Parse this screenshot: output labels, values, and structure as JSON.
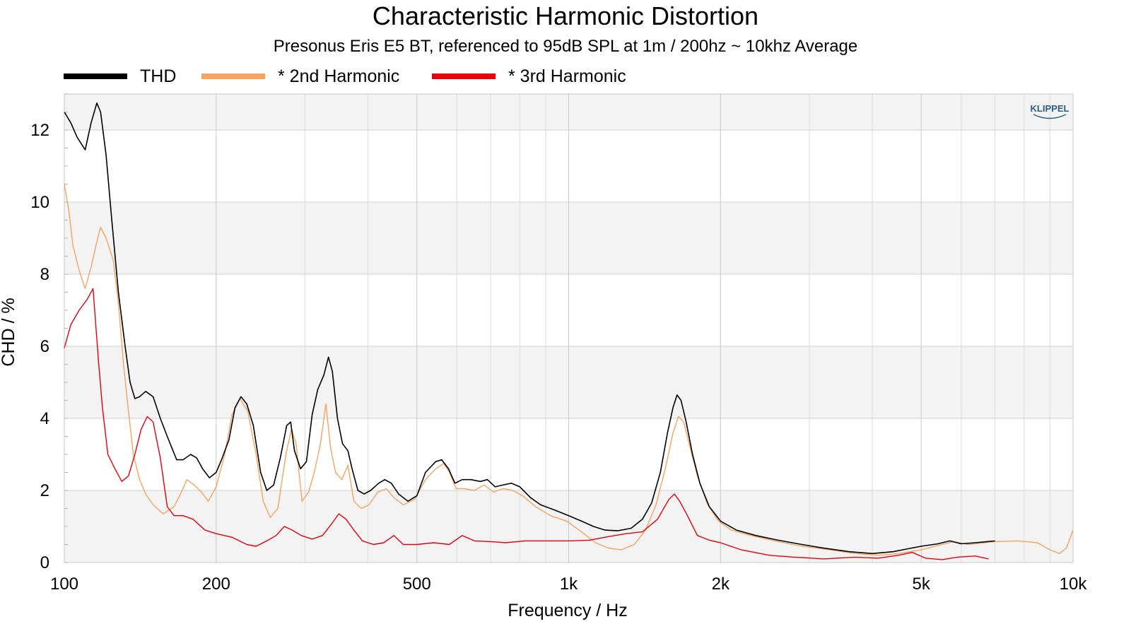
{
  "chart_data": {
    "type": "line",
    "title": "Characteristic Harmonic Distortion",
    "subtitle": "Presonus Eris E5 BT, referenced to 95dB SPL at 1m / 200hz ~ 10khz Average",
    "xlabel": "Frequency / Hz",
    "ylabel": "CHD / %",
    "xscale": "log",
    "xlim": [
      100,
      10000
    ],
    "ylim": [
      0,
      13
    ],
    "x_ticks": [
      100,
      200,
      500,
      1000,
      2000,
      5000,
      10000
    ],
    "x_tick_labels": [
      "100",
      "200",
      "500",
      "1k",
      "2k",
      "5k",
      "10k"
    ],
    "y_ticks": [
      0,
      2,
      4,
      6,
      8,
      10,
      12
    ],
    "y_tick_labels": [
      "0",
      "2",
      "4",
      "6",
      "8",
      "10",
      "12"
    ],
    "grid": true,
    "legend_position": "top-left",
    "watermark": "KLIPPEL",
    "series": [
      {
        "name": "THD",
        "color": "#000000",
        "points": [
          [
            100,
            12.5
          ],
          [
            103,
            12.2
          ],
          [
            106,
            11.8
          ],
          [
            110,
            11.45
          ],
          [
            113,
            12.2
          ],
          [
            116,
            12.75
          ],
          [
            118,
            12.5
          ],
          [
            121,
            11.3
          ],
          [
            124,
            9.6
          ],
          [
            128,
            7.5
          ],
          [
            132,
            6.0
          ],
          [
            135,
            5.0
          ],
          [
            138,
            4.55
          ],
          [
            141,
            4.6
          ],
          [
            145,
            4.75
          ],
          [
            150,
            4.6
          ],
          [
            155,
            4.0
          ],
          [
            160,
            3.5
          ],
          [
            167,
            2.85
          ],
          [
            172,
            2.85
          ],
          [
            178,
            3.0
          ],
          [
            183,
            2.9
          ],
          [
            188,
            2.6
          ],
          [
            194,
            2.35
          ],
          [
            200,
            2.5
          ],
          [
            205,
            2.85
          ],
          [
            212,
            3.4
          ],
          [
            218,
            4.3
          ],
          [
            224,
            4.6
          ],
          [
            230,
            4.4
          ],
          [
            237,
            3.8
          ],
          [
            245,
            2.5
          ],
          [
            252,
            2.0
          ],
          [
            260,
            2.15
          ],
          [
            268,
            2.9
          ],
          [
            276,
            3.8
          ],
          [
            281,
            3.9
          ],
          [
            286,
            3.1
          ],
          [
            294,
            2.6
          ],
          [
            302,
            2.8
          ],
          [
            310,
            4.1
          ],
          [
            318,
            4.8
          ],
          [
            327,
            5.2
          ],
          [
            334,
            5.7
          ],
          [
            340,
            5.3
          ],
          [
            348,
            4.0
          ],
          [
            356,
            3.3
          ],
          [
            365,
            3.1
          ],
          [
            372,
            2.6
          ],
          [
            382,
            2.0
          ],
          [
            393,
            1.9
          ],
          [
            405,
            2.0
          ],
          [
            420,
            2.2
          ],
          [
            432,
            2.3
          ],
          [
            445,
            2.2
          ],
          [
            460,
            1.9
          ],
          [
            480,
            1.7
          ],
          [
            500,
            1.85
          ],
          [
            520,
            2.5
          ],
          [
            545,
            2.8
          ],
          [
            560,
            2.85
          ],
          [
            578,
            2.6
          ],
          [
            595,
            2.2
          ],
          [
            615,
            2.3
          ],
          [
            640,
            2.3
          ],
          [
            668,
            2.25
          ],
          [
            690,
            2.3
          ],
          [
            715,
            2.1
          ],
          [
            740,
            2.15
          ],
          [
            770,
            2.2
          ],
          [
            800,
            2.1
          ],
          [
            840,
            1.8
          ],
          [
            880,
            1.6
          ],
          [
            940,
            1.45
          ],
          [
            1000,
            1.3
          ],
          [
            1060,
            1.15
          ],
          [
            1120,
            1.0
          ],
          [
            1180,
            0.9
          ],
          [
            1250,
            0.88
          ],
          [
            1330,
            0.95
          ],
          [
            1400,
            1.2
          ],
          [
            1460,
            1.65
          ],
          [
            1520,
            2.5
          ],
          [
            1570,
            3.6
          ],
          [
            1610,
            4.3
          ],
          [
            1640,
            4.65
          ],
          [
            1670,
            4.5
          ],
          [
            1710,
            3.9
          ],
          [
            1760,
            3.0
          ],
          [
            1820,
            2.2
          ],
          [
            1900,
            1.55
          ],
          [
            2000,
            1.15
          ],
          [
            2150,
            0.9
          ],
          [
            2350,
            0.75
          ],
          [
            2600,
            0.62
          ],
          [
            2900,
            0.5
          ],
          [
            3200,
            0.4
          ],
          [
            3600,
            0.3
          ],
          [
            4000,
            0.25
          ],
          [
            4400,
            0.3
          ],
          [
            4700,
            0.38
          ],
          [
            5000,
            0.45
          ],
          [
            5400,
            0.52
          ],
          [
            5700,
            0.6
          ],
          [
            6000,
            0.52
          ],
          [
            6400,
            0.55
          ],
          [
            7000,
            0.6
          ]
        ]
      },
      {
        "name": "* 2nd Harmonic",
        "color": "#f4a460",
        "points": [
          [
            100,
            10.5
          ],
          [
            102,
            9.8
          ],
          [
            104,
            8.8
          ],
          [
            107,
            8.1
          ],
          [
            110,
            7.6
          ],
          [
            113,
            8.2
          ],
          [
            116,
            8.9
          ],
          [
            118,
            9.3
          ],
          [
            121,
            9.0
          ],
          [
            125,
            8.4
          ],
          [
            128,
            7.2
          ],
          [
            131,
            5.5
          ],
          [
            134,
            4.2
          ],
          [
            137,
            3.0
          ],
          [
            141,
            2.3
          ],
          [
            145,
            1.9
          ],
          [
            150,
            1.6
          ],
          [
            157,
            1.35
          ],
          [
            165,
            1.55
          ],
          [
            170,
            1.9
          ],
          [
            175,
            2.3
          ],
          [
            181,
            2.15
          ],
          [
            187,
            1.95
          ],
          [
            193,
            1.7
          ],
          [
            200,
            2.1
          ],
          [
            208,
            3.0
          ],
          [
            215,
            4.1
          ],
          [
            223,
            4.55
          ],
          [
            231,
            4.2
          ],
          [
            240,
            3.0
          ],
          [
            248,
            1.7
          ],
          [
            256,
            1.25
          ],
          [
            265,
            1.5
          ],
          [
            275,
            3.0
          ],
          [
            282,
            3.7
          ],
          [
            288,
            3.3
          ],
          [
            296,
            1.7
          ],
          [
            305,
            1.95
          ],
          [
            313,
            2.5
          ],
          [
            322,
            3.3
          ],
          [
            330,
            4.4
          ],
          [
            337,
            3.2
          ],
          [
            345,
            2.5
          ],
          [
            355,
            2.3
          ],
          [
            365,
            2.7
          ],
          [
            375,
            1.7
          ],
          [
            388,
            1.5
          ],
          [
            402,
            1.6
          ],
          [
            418,
            1.95
          ],
          [
            435,
            2.05
          ],
          [
            450,
            1.8
          ],
          [
            470,
            1.6
          ],
          [
            495,
            1.75
          ],
          [
            520,
            2.3
          ],
          [
            545,
            2.6
          ],
          [
            565,
            2.75
          ],
          [
            580,
            2.5
          ],
          [
            598,
            2.05
          ],
          [
            620,
            2.05
          ],
          [
            650,
            2.0
          ],
          [
            680,
            2.15
          ],
          [
            710,
            1.95
          ],
          [
            740,
            2.05
          ],
          [
            775,
            2.0
          ],
          [
            810,
            1.85
          ],
          [
            860,
            1.55
          ],
          [
            920,
            1.3
          ],
          [
            990,
            1.15
          ],
          [
            1060,
            0.85
          ],
          [
            1130,
            0.55
          ],
          [
            1200,
            0.4
          ],
          [
            1270,
            0.35
          ],
          [
            1350,
            0.5
          ],
          [
            1420,
            0.9
          ],
          [
            1490,
            1.6
          ],
          [
            1560,
            2.7
          ],
          [
            1610,
            3.6
          ],
          [
            1650,
            4.05
          ],
          [
            1690,
            3.9
          ],
          [
            1740,
            3.2
          ],
          [
            1800,
            2.4
          ],
          [
            1880,
            1.65
          ],
          [
            1980,
            1.15
          ],
          [
            2100,
            0.9
          ],
          [
            2300,
            0.75
          ],
          [
            2600,
            0.58
          ],
          [
            2900,
            0.45
          ],
          [
            3300,
            0.35
          ],
          [
            3700,
            0.25
          ],
          [
            4100,
            0.2
          ],
          [
            4500,
            0.25
          ],
          [
            5000,
            0.35
          ],
          [
            5500,
            0.5
          ],
          [
            5800,
            0.58
          ],
          [
            6200,
            0.5
          ],
          [
            7000,
            0.58
          ],
          [
            7800,
            0.6
          ],
          [
            8500,
            0.55
          ],
          [
            9000,
            0.35
          ],
          [
            9400,
            0.25
          ],
          [
            9700,
            0.4
          ],
          [
            10000,
            0.9
          ]
        ]
      },
      {
        "name": "* 3rd Harmonic",
        "color": "#e8000b",
        "points": [
          [
            100,
            5.95
          ],
          [
            103,
            6.6
          ],
          [
            107,
            7.0
          ],
          [
            111,
            7.3
          ],
          [
            114,
            7.6
          ],
          [
            117,
            5.5
          ],
          [
            119,
            4.3
          ],
          [
            122,
            3.0
          ],
          [
            126,
            2.6
          ],
          [
            130,
            2.25
          ],
          [
            134,
            2.4
          ],
          [
            138,
            3.0
          ],
          [
            142,
            3.7
          ],
          [
            146,
            4.05
          ],
          [
            150,
            3.9
          ],
          [
            155,
            2.9
          ],
          [
            160,
            1.55
          ],
          [
            165,
            1.3
          ],
          [
            172,
            1.3
          ],
          [
            180,
            1.2
          ],
          [
            190,
            0.9
          ],
          [
            200,
            0.8
          ],
          [
            215,
            0.7
          ],
          [
            230,
            0.5
          ],
          [
            240,
            0.45
          ],
          [
            252,
            0.6
          ],
          [
            263,
            0.75
          ],
          [
            273,
            1.0
          ],
          [
            283,
            0.9
          ],
          [
            295,
            0.75
          ],
          [
            310,
            0.65
          ],
          [
            325,
            0.75
          ],
          [
            340,
            1.1
          ],
          [
            350,
            1.35
          ],
          [
            362,
            1.2
          ],
          [
            375,
            0.9
          ],
          [
            390,
            0.6
          ],
          [
            410,
            0.5
          ],
          [
            430,
            0.55
          ],
          [
            450,
            0.75
          ],
          [
            470,
            0.5
          ],
          [
            500,
            0.5
          ],
          [
            540,
            0.55
          ],
          [
            580,
            0.5
          ],
          [
            615,
            0.75
          ],
          [
            650,
            0.6
          ],
          [
            700,
            0.58
          ],
          [
            750,
            0.55
          ],
          [
            820,
            0.6
          ],
          [
            900,
            0.6
          ],
          [
            1000,
            0.6
          ],
          [
            1100,
            0.62
          ],
          [
            1200,
            0.72
          ],
          [
            1300,
            0.8
          ],
          [
            1400,
            0.85
          ],
          [
            1500,
            1.2
          ],
          [
            1580,
            1.75
          ],
          [
            1620,
            1.9
          ],
          [
            1660,
            1.7
          ],
          [
            1720,
            1.3
          ],
          [
            1800,
            0.75
          ],
          [
            1900,
            0.62
          ],
          [
            2000,
            0.55
          ],
          [
            2200,
            0.35
          ],
          [
            2500,
            0.2
          ],
          [
            2800,
            0.15
          ],
          [
            3200,
            0.1
          ],
          [
            3700,
            0.15
          ],
          [
            4100,
            0.12
          ],
          [
            4500,
            0.2
          ],
          [
            4800,
            0.28
          ],
          [
            5100,
            0.12
          ],
          [
            5500,
            0.08
          ],
          [
            5900,
            0.15
          ],
          [
            6400,
            0.18
          ],
          [
            6800,
            0.1
          ]
        ]
      }
    ]
  }
}
